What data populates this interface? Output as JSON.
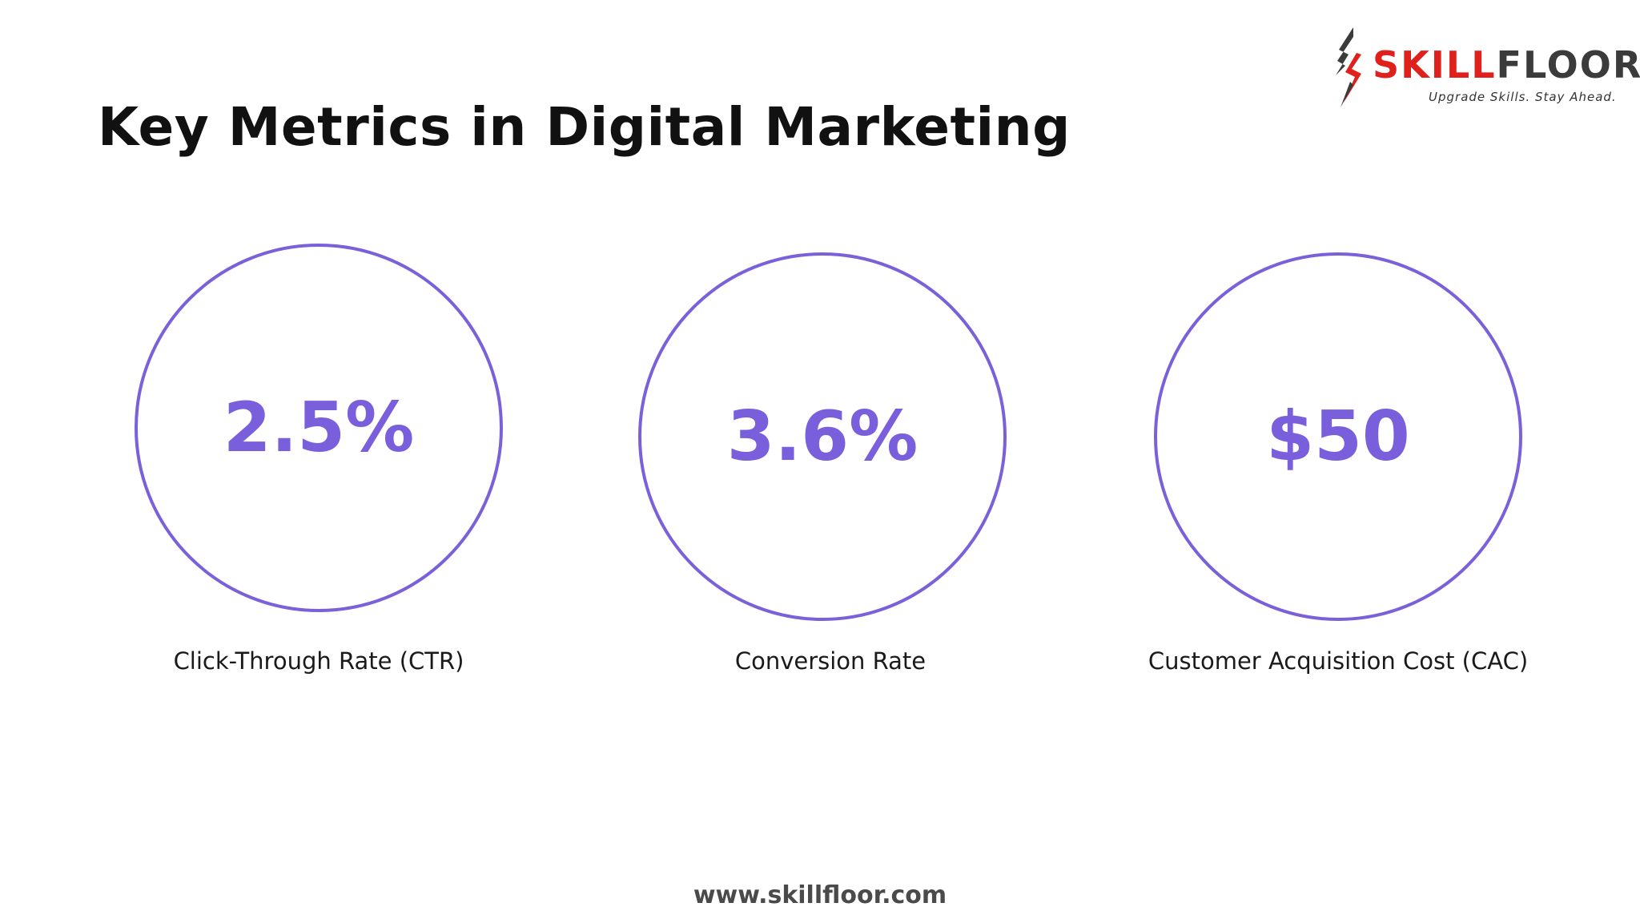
{
  "slide": {
    "title": "Key Metrics in Digital Marketing",
    "footer": "www.skillfloor.com"
  },
  "logo": {
    "word_part1": "SKILL",
    "word_part2": "FLOOR",
    "tagline": "Upgrade Skills. Stay Ahead.",
    "colors": {
      "red": "#e0201b",
      "dark": "#3b3b3b"
    }
  },
  "metrics": [
    {
      "value": "2.5%",
      "label": "Click-Through Rate (CTR)"
    },
    {
      "value": "3.6%",
      "label": "Conversion Rate"
    },
    {
      "value": "$50",
      "label": "Customer Acquisition Cost (CAC)"
    }
  ],
  "colors": {
    "accent": "#7a5fdc",
    "circle_stroke": "#7b61d9",
    "title": "#111111",
    "footer": "#4a4a4a"
  }
}
